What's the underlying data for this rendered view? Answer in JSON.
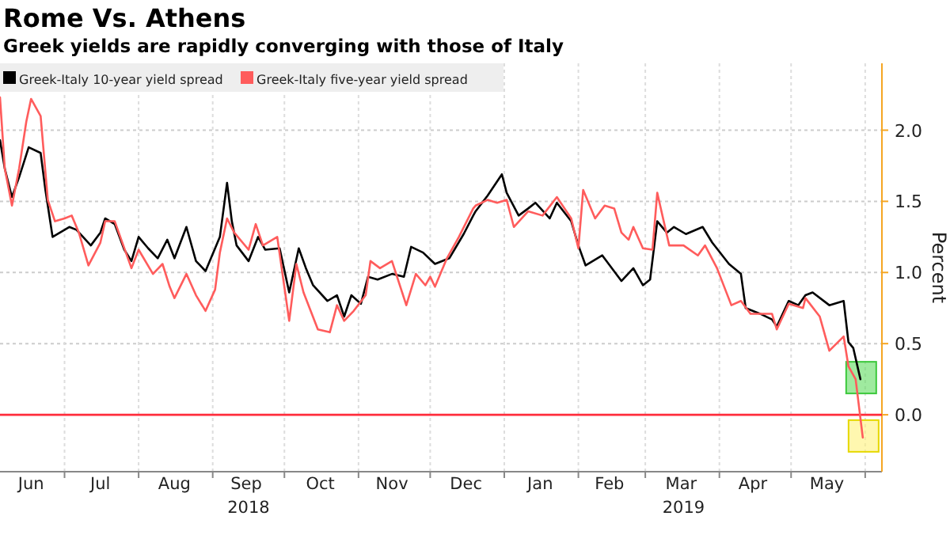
{
  "chart_data": {
    "type": "line",
    "title": "Rome Vs. Athens",
    "subtitle": "Greek yields are rapidly converging with those of Italy",
    "ylabel": "Percent",
    "xlim": [
      "2018-06-04",
      "2019-06-08"
    ],
    "xticks": [
      {
        "value": "2018-06-17",
        "label": "Jun"
      },
      {
        "value": "2018-07-01",
        "label": null
      },
      {
        "value": "2018-07-16",
        "label": "Jul"
      },
      {
        "value": "2018-08-01",
        "label": null
      },
      {
        "value": "2018-08-16",
        "label": "Aug"
      },
      {
        "value": "2018-09-01",
        "label": null
      },
      {
        "value": "2018-09-15",
        "label": "Sep"
      },
      {
        "value": "2018-10-01",
        "label": null
      },
      {
        "value": "2018-10-16",
        "label": "Oct"
      },
      {
        "value": "2018-11-01",
        "label": null
      },
      {
        "value": "2018-11-15",
        "label": "Nov"
      },
      {
        "value": "2018-12-01",
        "label": null
      },
      {
        "value": "2018-12-16",
        "label": "Dec"
      },
      {
        "value": "2019-01-01",
        "label": null
      },
      {
        "value": "2019-01-16",
        "label": "Jan"
      },
      {
        "value": "2019-02-01",
        "label": null
      },
      {
        "value": "2019-02-14",
        "label": "Feb"
      },
      {
        "value": "2019-03-01",
        "label": null
      },
      {
        "value": "2019-03-16",
        "label": "Mar"
      },
      {
        "value": "2019-04-01",
        "label": null
      },
      {
        "value": "2019-04-15",
        "label": "Apr"
      },
      {
        "value": "2019-05-01",
        "label": null
      },
      {
        "value": "2019-05-16",
        "label": "May"
      },
      {
        "value": "2019-06-01",
        "label": null
      }
    ],
    "ylim": [
      -0.4,
      2.47
    ],
    "yticks": [
      {
        "value": 0,
        "label": "0.0"
      },
      {
        "value": 0.5,
        "label": "0.5"
      },
      {
        "value": 1,
        "label": "1.0"
      },
      {
        "value": 1.5,
        "label": "1.5"
      },
      {
        "value": 2,
        "label": "2.0"
      }
    ],
    "grid": true,
    "legend": "top left",
    "line_style": "solid",
    "ref_lines": [
      {
        "axis": "y",
        "value": 0,
        "color": "#ff2d3c"
      }
    ],
    "annotations": [
      "2018",
      "2019"
    ],
    "series": [
      {
        "name": "Greek-Italy 10-year yield spread",
        "color": "#000000",
        "x": [
          "2018-06-04",
          "2018-06-06",
          "2018-06-09",
          "2018-06-12",
          "2018-06-16",
          "2018-06-21",
          "2018-06-23",
          "2018-06-26",
          "2018-07-03",
          "2018-07-06",
          "2018-07-12",
          "2018-07-16",
          "2018-07-18",
          "2018-07-22",
          "2018-07-26",
          "2018-07-29",
          "2018-08-01",
          "2018-08-05",
          "2018-08-09",
          "2018-08-13",
          "2018-08-16",
          "2018-08-21",
          "2018-08-25",
          "2018-08-29",
          "2018-09-02",
          "2018-09-04",
          "2018-09-07",
          "2018-09-09",
          "2018-09-11",
          "2018-09-16",
          "2018-09-20",
          "2018-09-23",
          "2018-09-29",
          "2018-10-03",
          "2018-10-07",
          "2018-10-10",
          "2018-10-13",
          "2018-10-19",
          "2018-10-23",
          "2018-10-26",
          "2018-10-29",
          "2018-11-02",
          "2018-11-05",
          "2018-11-09",
          "2018-11-15",
          "2018-11-20",
          "2018-11-23",
          "2018-11-28",
          "2018-12-03",
          "2018-12-09",
          "2018-12-15",
          "2018-12-19",
          "2018-12-20",
          "2018-12-25",
          "2018-12-29",
          "2018-12-31",
          "2019-01-02",
          "2019-01-07",
          "2019-01-11",
          "2019-01-14",
          "2019-01-20",
          "2019-01-23",
          "2019-01-29",
          "2019-02-01",
          "2019-02-04",
          "2019-02-11",
          "2019-02-19",
          "2019-02-24",
          "2019-02-28",
          "2019-03-03",
          "2019-03-06",
          "2019-03-10",
          "2019-03-13",
          "2019-03-18",
          "2019-03-25",
          "2019-03-29",
          "2019-04-05",
          "2019-04-10",
          "2019-04-12",
          "2019-04-18",
          "2019-04-23",
          "2019-04-25",
          "2019-04-30",
          "2019-05-04",
          "2019-05-07",
          "2019-05-10",
          "2019-05-17",
          "2019-05-23",
          "2019-05-25",
          "2019-05-27",
          "2019-05-30"
        ],
        "values": [
          1.93,
          1.73,
          1.53,
          1.67,
          1.88,
          1.84,
          1.58,
          1.25,
          1.32,
          1.3,
          1.19,
          1.28,
          1.38,
          1.34,
          1.16,
          1.08,
          1.25,
          1.17,
          1.1,
          1.23,
          1.1,
          1.32,
          1.08,
          1.01,
          1.17,
          1.25,
          1.63,
          1.36,
          1.19,
          1.08,
          1.25,
          1.16,
          1.17,
          0.86,
          1.17,
          1.03,
          0.91,
          0.8,
          0.84,
          0.69,
          0.84,
          0.78,
          0.97,
          0.95,
          0.99,
          0.97,
          1.18,
          1.14,
          1.06,
          1.1,
          1.27,
          1.4,
          1.43,
          1.54,
          1.64,
          1.69,
          1.56,
          1.4,
          1.45,
          1.49,
          1.38,
          1.49,
          1.36,
          1.19,
          1.05,
          1.12,
          0.94,
          1.03,
          0.91,
          0.95,
          1.36,
          1.28,
          1.32,
          1.27,
          1.32,
          1.21,
          1.06,
          0.99,
          0.75,
          0.71,
          0.67,
          0.62,
          0.8,
          0.77,
          0.84,
          0.86,
          0.77,
          0.8,
          0.51,
          0.47,
          0.25
        ]
      },
      {
        "name": "Greek-Italy five-year yield spread",
        "color": "#ff5c5c",
        "x": [
          "2018-06-04",
          "2018-06-06",
          "2018-06-09",
          "2018-06-12",
          "2018-06-15",
          "2018-06-17",
          "2018-06-21",
          "2018-06-24",
          "2018-06-27",
          "2018-07-01",
          "2018-07-04",
          "2018-07-07",
          "2018-07-11",
          "2018-07-16",
          "2018-07-18",
          "2018-07-22",
          "2018-07-29",
          "2018-08-01",
          "2018-08-07",
          "2018-08-11",
          "2018-08-14",
          "2018-08-16",
          "2018-08-21",
          "2018-08-25",
          "2018-08-29",
          "2018-09-02",
          "2018-09-04",
          "2018-09-07",
          "2018-09-10",
          "2018-09-16",
          "2018-09-19",
          "2018-09-22",
          "2018-09-28",
          "2018-10-03",
          "2018-10-06",
          "2018-10-09",
          "2018-10-15",
          "2018-10-20",
          "2018-10-23",
          "2018-10-26",
          "2018-10-30",
          "2018-11-04",
          "2018-11-06",
          "2018-11-10",
          "2018-11-15",
          "2018-11-21",
          "2018-11-25",
          "2018-11-29",
          "2018-12-01",
          "2018-12-03",
          "2018-12-08",
          "2018-12-13",
          "2018-12-19",
          "2018-12-20",
          "2018-12-25",
          "2018-12-29",
          "2019-01-02",
          "2019-01-05",
          "2019-01-11",
          "2019-01-17",
          "2019-01-23",
          "2019-01-29",
          "2019-02-01",
          "2019-02-03",
          "2019-02-08",
          "2019-02-12",
          "2019-02-16",
          "2019-02-19",
          "2019-02-22",
          "2019-02-24",
          "2019-02-28",
          "2019-03-04",
          "2019-03-06",
          "2019-03-11",
          "2019-03-17",
          "2019-03-23",
          "2019-03-26",
          "2019-03-31",
          "2019-04-06",
          "2019-04-10",
          "2019-04-14",
          "2019-04-23",
          "2019-04-25",
          "2019-04-30",
          "2019-05-06",
          "2019-05-07",
          "2019-05-13",
          "2019-05-17",
          "2019-05-23",
          "2019-05-25",
          "2019-05-28",
          "2019-05-31"
        ],
        "values": [
          2.23,
          1.73,
          1.47,
          1.73,
          2.06,
          2.22,
          2.1,
          1.51,
          1.36,
          1.38,
          1.4,
          1.28,
          1.05,
          1.21,
          1.36,
          1.36,
          1.03,
          1.16,
          0.99,
          1.06,
          0.9,
          0.82,
          0.99,
          0.84,
          0.73,
          0.88,
          1.14,
          1.38,
          1.28,
          1.16,
          1.34,
          1.19,
          1.25,
          0.66,
          1.06,
          0.86,
          0.6,
          0.58,
          0.77,
          0.66,
          0.73,
          0.84,
          1.08,
          1.03,
          1.08,
          0.77,
          0.99,
          0.91,
          0.97,
          0.9,
          1.1,
          1.25,
          1.45,
          1.47,
          1.51,
          1.49,
          1.51,
          1.32,
          1.43,
          1.4,
          1.53,
          1.38,
          1.17,
          1.58,
          1.38,
          1.47,
          1.45,
          1.28,
          1.23,
          1.32,
          1.17,
          1.16,
          1.56,
          1.19,
          1.19,
          1.12,
          1.19,
          1.03,
          0.77,
          0.8,
          0.71,
          0.71,
          0.6,
          0.78,
          0.75,
          0.82,
          0.69,
          0.45,
          0.55,
          0.34,
          0.25,
          -0.16
        ]
      }
    ]
  }
}
